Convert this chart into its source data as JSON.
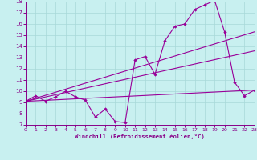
{
  "background_color": "#c8f0f0",
  "grid_color": "#a8d8d8",
  "line_color": "#990099",
  "marker_color": "#990099",
  "xlabel": "Windchill (Refroidissement éolien,°C)",
  "xlabel_color": "#880088",
  "xlim": [
    0,
    23
  ],
  "ylim": [
    7,
    18
  ],
  "xticks": [
    0,
    1,
    2,
    3,
    4,
    5,
    6,
    7,
    8,
    9,
    10,
    11,
    12,
    13,
    14,
    15,
    16,
    17,
    18,
    19,
    20,
    21,
    22,
    23
  ],
  "yticks": [
    7,
    8,
    9,
    10,
    11,
    12,
    13,
    14,
    15,
    16,
    17,
    18
  ],
  "tick_color": "#880088",
  "line1_x": [
    0,
    1,
    2,
    3,
    4,
    5,
    6,
    7,
    8,
    9,
    10,
    11,
    12,
    13,
    14,
    15,
    16,
    17,
    18,
    19,
    20,
    21,
    22,
    23
  ],
  "line1_y": [
    9.1,
    9.6,
    9.1,
    9.5,
    10.0,
    9.5,
    9.2,
    7.7,
    8.4,
    7.3,
    7.2,
    12.8,
    13.1,
    11.5,
    14.5,
    15.8,
    16.0,
    17.3,
    17.7,
    18.1,
    15.3,
    10.8,
    9.6,
    10.1
  ],
  "line2_x": [
    0,
    23
  ],
  "line2_y": [
    9.1,
    13.6
  ],
  "line3_x": [
    0,
    23
  ],
  "line3_y": [
    9.1,
    15.3
  ],
  "line4_x": [
    0,
    23
  ],
  "line4_y": [
    9.1,
    10.1
  ],
  "figwidth": 3.2,
  "figheight": 2.0,
  "dpi": 100
}
